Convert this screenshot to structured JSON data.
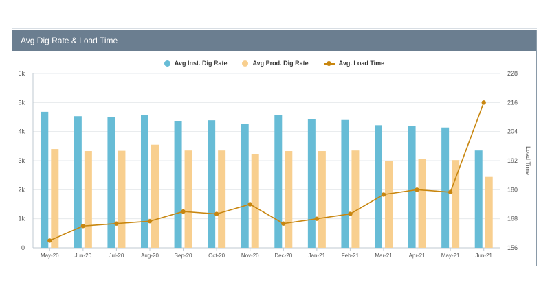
{
  "panel": {
    "title": "Avg Dig Rate & Load Time"
  },
  "colors": {
    "inst": "#67bcd6",
    "prod": "#f8cf8f",
    "line": "#c8860f",
    "header": "#6b7e90"
  },
  "chart_data": {
    "type": "bar",
    "categories": [
      "May-20",
      "Jun-20",
      "Jul-20",
      "Aug-20",
      "Sep-20",
      "Oct-20",
      "Nov-20",
      "Dec-20",
      "Jan-21",
      "Feb-21",
      "Mar-21",
      "Apr-21",
      "May-21",
      "Jun-21"
    ],
    "series": [
      {
        "name": "Avg Inst. Dig Rate",
        "type": "bar",
        "axis": "left",
        "values": [
          4680,
          4530,
          4510,
          4560,
          4370,
          4390,
          4260,
          4580,
          4440,
          4400,
          4220,
          4200,
          4140,
          3350
        ]
      },
      {
        "name": "Avg Prod. Dig Rate",
        "type": "bar",
        "axis": "left",
        "values": [
          3400,
          3330,
          3340,
          3550,
          3350,
          3350,
          3220,
          3330,
          3330,
          3350,
          2980,
          3070,
          3020,
          2440
        ]
      },
      {
        "name": "Avg. Load Time",
        "type": "line",
        "axis": "right",
        "values": [
          159,
          165,
          166,
          167,
          171,
          170,
          174,
          166,
          168,
          170,
          178,
          180,
          179,
          216
        ]
      }
    ],
    "y_left": {
      "ticks": [
        "0",
        "1k",
        "2k",
        "3k",
        "4k",
        "5k",
        "6k"
      ],
      "lim": [
        0,
        6000
      ]
    },
    "y_right": {
      "label": "Load Time",
      "ticks": [
        "156",
        "168",
        "180",
        "192",
        "204",
        "216",
        "228"
      ],
      "lim": [
        156,
        228
      ]
    },
    "legend_position": "top-center",
    "grid": true
  }
}
